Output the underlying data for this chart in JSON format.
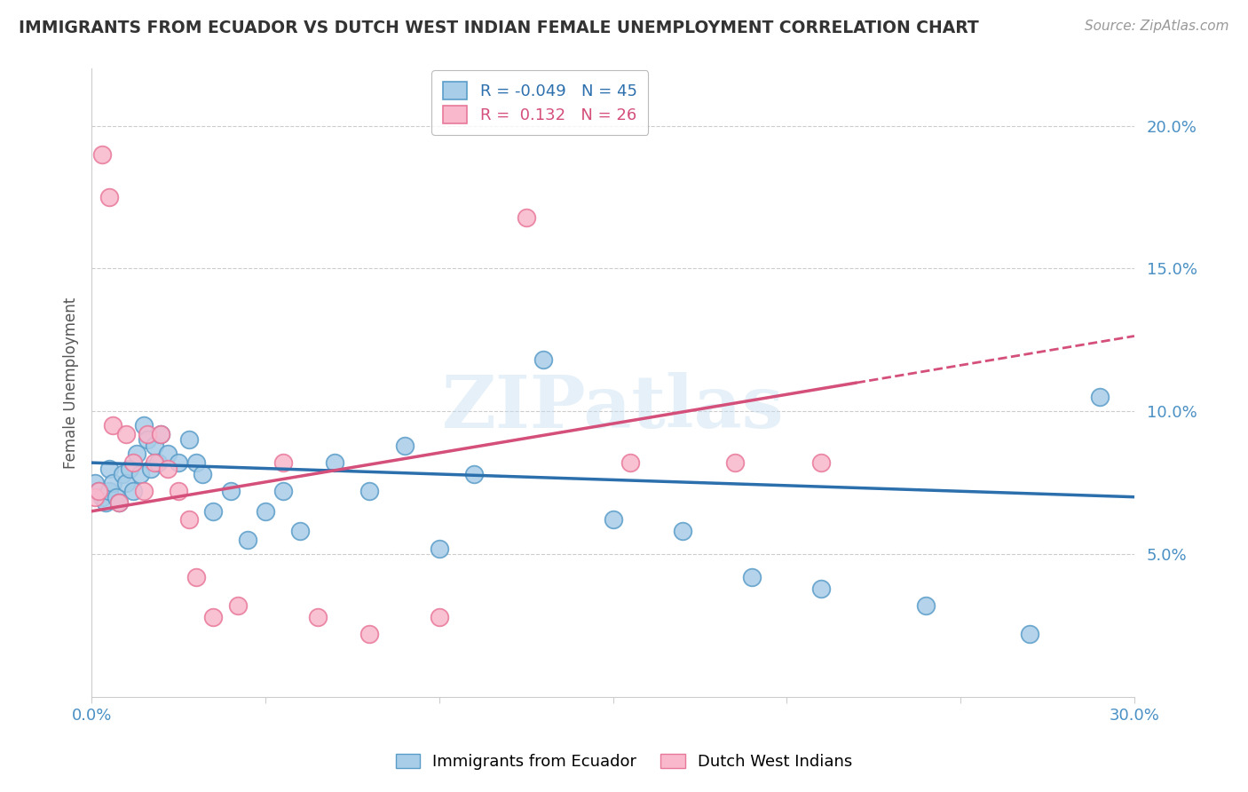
{
  "title": "IMMIGRANTS FROM ECUADOR VS DUTCH WEST INDIAN FEMALE UNEMPLOYMENT CORRELATION CHART",
  "source": "Source: ZipAtlas.com",
  "ylabel": "Female Unemployment",
  "xlim": [
    0.0,
    0.3
  ],
  "ylim": [
    0.0,
    0.22
  ],
  "yticks": [
    0.05,
    0.1,
    0.15,
    0.2
  ],
  "ytick_labels": [
    "5.0%",
    "10.0%",
    "15.0%",
    "20.0%"
  ],
  "xticks": [
    0.0,
    0.05,
    0.1,
    0.15,
    0.2,
    0.25,
    0.3
  ],
  "xtick_labels": [
    "0.0%",
    "",
    "",
    "",
    "",
    "",
    "30.0%"
  ],
  "legend_label1": "Immigrants from Ecuador",
  "legend_label2": "Dutch West Indians",
  "r1": "-0.049",
  "n1": "45",
  "r2": "0.132",
  "n2": "26",
  "blue_color": "#a8cde8",
  "pink_color": "#f9b8cc",
  "blue_edge_color": "#5b9dc9",
  "pink_edge_color": "#e8789a",
  "blue_line_color": "#2c6fad",
  "pink_line_color": "#d44f7a",
  "watermark": "ZIPatlas",
  "blue_dots_x": [
    0.001,
    0.002,
    0.003,
    0.004,
    0.005,
    0.005,
    0.006,
    0.007,
    0.008,
    0.009,
    0.01,
    0.011,
    0.012,
    0.013,
    0.014,
    0.015,
    0.016,
    0.017,
    0.018,
    0.019,
    0.02,
    0.022,
    0.025,
    0.028,
    0.03,
    0.032,
    0.035,
    0.04,
    0.045,
    0.05,
    0.055,
    0.06,
    0.07,
    0.08,
    0.09,
    0.1,
    0.11,
    0.13,
    0.15,
    0.17,
    0.19,
    0.21,
    0.24,
    0.27,
    0.29
  ],
  "blue_dots_y": [
    0.075,
    0.072,
    0.07,
    0.068,
    0.072,
    0.08,
    0.075,
    0.07,
    0.068,
    0.078,
    0.075,
    0.08,
    0.072,
    0.085,
    0.078,
    0.095,
    0.09,
    0.08,
    0.088,
    0.082,
    0.092,
    0.085,
    0.082,
    0.09,
    0.082,
    0.078,
    0.065,
    0.072,
    0.055,
    0.065,
    0.072,
    0.058,
    0.082,
    0.072,
    0.088,
    0.052,
    0.078,
    0.118,
    0.062,
    0.058,
    0.042,
    0.038,
    0.032,
    0.022,
    0.105
  ],
  "pink_dots_x": [
    0.001,
    0.002,
    0.003,
    0.005,
    0.006,
    0.008,
    0.01,
    0.012,
    0.015,
    0.016,
    0.018,
    0.02,
    0.022,
    0.025,
    0.028,
    0.03,
    0.035,
    0.042,
    0.055,
    0.065,
    0.08,
    0.1,
    0.125,
    0.155,
    0.185,
    0.21
  ],
  "pink_dots_y": [
    0.07,
    0.072,
    0.19,
    0.175,
    0.095,
    0.068,
    0.092,
    0.082,
    0.072,
    0.092,
    0.082,
    0.092,
    0.08,
    0.072,
    0.062,
    0.042,
    0.028,
    0.032,
    0.082,
    0.028,
    0.022,
    0.028,
    0.168,
    0.082,
    0.082,
    0.082
  ]
}
